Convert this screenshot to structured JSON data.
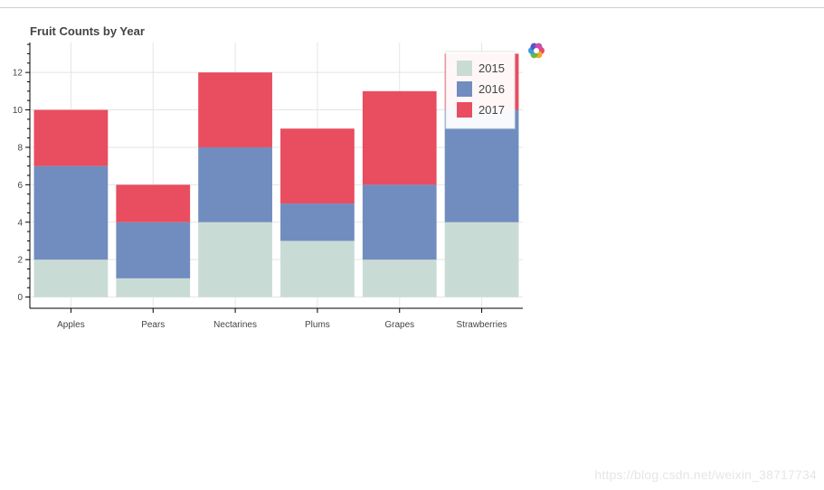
{
  "watermark": "https://blog.csdn.net/weixin_38717734",
  "colors": {
    "2015": "#c9dbd5",
    "2016": "#718dbf",
    "2017": "#e84d60"
  },
  "chart_data": {
    "type": "bar",
    "stacked": true,
    "title": "Fruit Counts by Year",
    "xlabel": "",
    "ylabel": "",
    "categories": [
      "Apples",
      "Pears",
      "Nectarines",
      "Plums",
      "Grapes",
      "Strawberries"
    ],
    "series": [
      {
        "name": "2015",
        "values": [
          2,
          1,
          4,
          3,
          2,
          4
        ]
      },
      {
        "name": "2016",
        "values": [
          5,
          3,
          4,
          2,
          4,
          6
        ]
      },
      {
        "name": "2017",
        "values": [
          3,
          2,
          4,
          4,
          5,
          3
        ]
      }
    ],
    "ylim": [
      -0.6,
      13.6
    ],
    "yticks": [
      "0",
      "2",
      "4",
      "6",
      "8",
      "10",
      "12"
    ],
    "grid": true,
    "legend": "top-right",
    "toolbar_logo": "bokeh-logo-icon"
  }
}
